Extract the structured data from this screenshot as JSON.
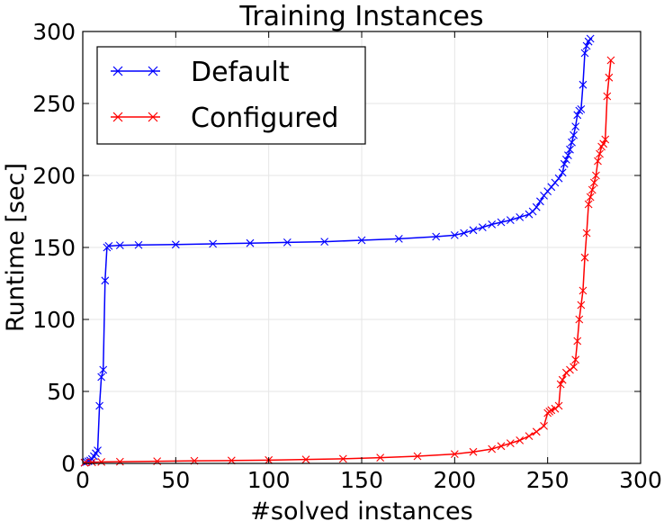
{
  "chart_data": {
    "type": "line",
    "title": "Training Instances",
    "xlabel": "#solved instances",
    "ylabel": "Runtime [sec]",
    "xlim": [
      0,
      300
    ],
    "ylim": [
      0,
      300
    ],
    "xticks": [
      0,
      50,
      100,
      150,
      200,
      250,
      300
    ],
    "yticks": [
      0,
      50,
      100,
      150,
      200,
      250,
      300
    ],
    "grid": true,
    "legend_position": "top-left",
    "marker": "x",
    "series": [
      {
        "name": "Default",
        "color": "#0000ff",
        "x": [
          1,
          2,
          3,
          4,
          5,
          6,
          7,
          8,
          9,
          10,
          11,
          12,
          13,
          14,
          20,
          30,
          50,
          70,
          90,
          110,
          130,
          150,
          170,
          190,
          200,
          205,
          210,
          215,
          220,
          225,
          230,
          235,
          240,
          242,
          244,
          246,
          248,
          250,
          252,
          254,
          256,
          258,
          259,
          260,
          261,
          262,
          263,
          264,
          265,
          266,
          267,
          268,
          269,
          270,
          271,
          272,
          273
        ],
        "y": [
          0.5,
          1,
          1.5,
          2,
          3,
          5,
          7,
          9,
          40,
          60,
          65,
          127,
          150,
          151,
          151.5,
          151.7,
          152,
          152.5,
          153,
          153.5,
          154,
          155,
          156,
          157.5,
          158.5,
          160,
          162,
          164,
          166,
          167.5,
          169,
          171,
          173,
          175,
          178,
          182,
          186,
          189,
          192,
          195,
          198,
          202,
          208,
          211,
          214,
          218,
          223,
          228,
          234,
          242,
          245,
          246,
          263,
          285,
          290,
          293,
          295
        ]
      },
      {
        "name": "Configured",
        "color": "#ff0000",
        "x": [
          1,
          5,
          10,
          20,
          40,
          60,
          80,
          100,
          120,
          140,
          160,
          180,
          200,
          210,
          220,
          225,
          230,
          235,
          240,
          244,
          248,
          250,
          251,
          252,
          254,
          256,
          257,
          258,
          260,
          262,
          264,
          265,
          266,
          267,
          268,
          269,
          270,
          271,
          272,
          273,
          274,
          275,
          276,
          277,
          278,
          279,
          280,
          281,
          282,
          283,
          284
        ],
        "y": [
          0.5,
          0.8,
          1,
          1.2,
          1.5,
          1.8,
          2,
          2.3,
          2.7,
          3.2,
          4,
          5,
          6.5,
          8,
          10,
          12,
          14,
          16,
          19,
          22,
          26,
          35,
          36,
          37,
          38,
          40,
          55,
          58,
          63,
          65,
          67,
          72,
          85,
          100,
          110,
          120,
          143,
          160,
          180,
          185,
          190,
          195,
          200,
          210,
          215,
          220,
          222,
          225,
          255,
          268,
          280
        ]
      }
    ]
  }
}
